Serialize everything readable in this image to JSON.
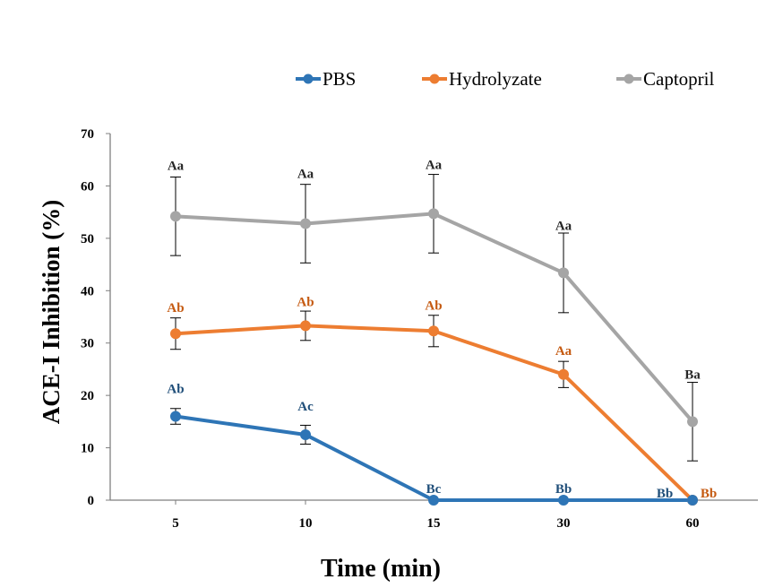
{
  "chart_data": {
    "type": "line",
    "title": "",
    "xlabel": "Time (min)",
    "ylabel": "ACE-I Inhibition (%)",
    "categories": [
      "5",
      "10",
      "15",
      "30",
      "60"
    ],
    "ylim": [
      0,
      70
    ],
    "yticks": [
      "0",
      "10",
      "20",
      "30",
      "40",
      "50",
      "60",
      "70"
    ],
    "grid": false,
    "legend_position": "top",
    "series": [
      {
        "name": "PBS",
        "color": "#2E75B6",
        "values": [
          16,
          12.5,
          0,
          0,
          0
        ],
        "errors": [
          1.5,
          1.8,
          0,
          0,
          0
        ],
        "labels": [
          "Ab",
          "Ac",
          "Bc",
          "Bb",
          "Bb"
        ]
      },
      {
        "name": "Hydrolyzate",
        "color": "#ED7D31",
        "values": [
          31.8,
          33.3,
          32.3,
          24,
          0
        ],
        "errors": [
          3,
          2.8,
          3,
          2.5,
          0
        ],
        "labels": [
          "Ab",
          "Ab",
          "Ab",
          "Aa",
          "Bb"
        ]
      },
      {
        "name": "Captopril",
        "color": "#A5A5A5",
        "values": [
          54.2,
          52.8,
          54.7,
          43.4,
          15
        ],
        "errors": [
          7.5,
          7.5,
          7.5,
          7.6,
          7.5
        ],
        "labels": [
          "Aa",
          "Aa",
          "Aa",
          "Aa",
          "Ba"
        ]
      }
    ],
    "annotation_colors": {
      "PBS": "#1F4E79",
      "Hydrolyzate": "#C55A11",
      "Captopril": "#262626"
    }
  }
}
